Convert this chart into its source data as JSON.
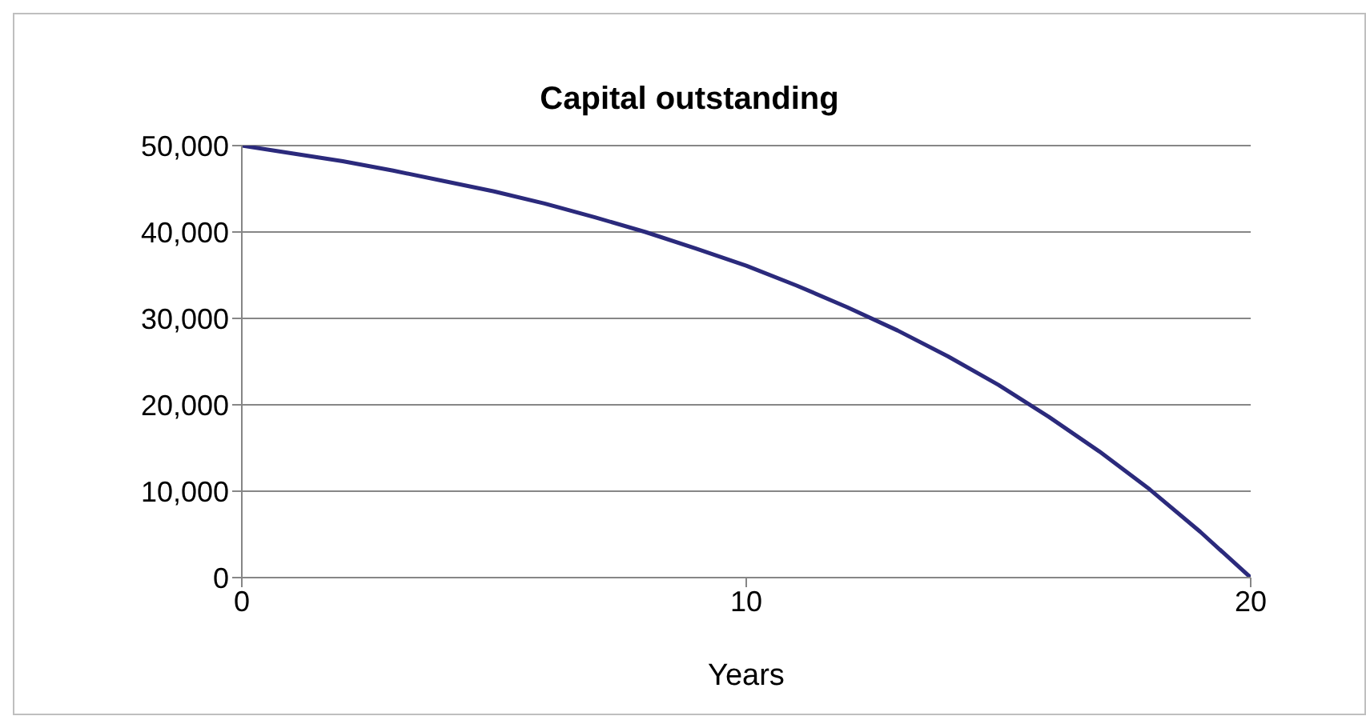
{
  "chart_data": {
    "type": "line",
    "title": "Capital outstanding",
    "xlabel": "Years",
    "x": [
      0,
      1,
      2,
      3,
      4,
      5,
      6,
      7,
      8,
      9,
      10,
      11,
      12,
      13,
      14,
      15,
      16,
      17,
      18,
      19,
      20
    ],
    "series": [
      {
        "color": "#2b2a7c",
        "values": [
          50000,
          49100,
          48200,
          47100,
          45900,
          44700,
          43300,
          41700,
          40000,
          38100,
          36100,
          33800,
          31300,
          28600,
          25600,
          22300,
          18600,
          14600,
          10200,
          5300,
          0
        ]
      }
    ],
    "xlim": [
      0,
      20
    ],
    "xticks": [
      0,
      10,
      20
    ],
    "ylim": [
      0,
      50000
    ],
    "yticks": [
      0,
      {
        "value": 10000,
        "label": "10,000"
      },
      {
        "value": 20000,
        "label": "20,000"
      },
      {
        "value": 30000,
        "label": "30,000"
      },
      {
        "value": 40000,
        "label": "40,000"
      },
      {
        "value": 50000,
        "label": "50,000"
      }
    ],
    "grid": "y",
    "legend": false,
    "marker": "none",
    "line_style": "solid"
  }
}
